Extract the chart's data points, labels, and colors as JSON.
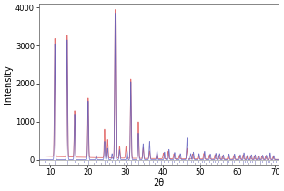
{
  "title": "",
  "xlabel": "2θ",
  "ylabel": "Intensity",
  "xlim": [
    7,
    71
  ],
  "ylim": [
    -120,
    4100
  ],
  "xticks": [
    10,
    20,
    30,
    40,
    50,
    60,
    70
  ],
  "yticks": [
    0,
    1000,
    2000,
    3000,
    4000
  ],
  "background": "#ffffff",
  "color_red": "#e06060",
  "color_blue": "#6060c0",
  "peaks_red": [
    [
      11.2,
      3100
    ],
    [
      14.5,
      3200
    ],
    [
      16.5,
      1220
    ],
    [
      20.1,
      1560
    ],
    [
      24.5,
      750
    ],
    [
      25.3,
      480
    ],
    [
      27.3,
      3900
    ],
    [
      28.5,
      320
    ],
    [
      30.2,
      300
    ],
    [
      31.5,
      2080
    ],
    [
      33.5,
      960
    ],
    [
      34.8,
      280
    ],
    [
      36.5,
      200
    ],
    [
      38.5,
      130
    ],
    [
      40.2,
      150
    ],
    [
      41.5,
      200
    ],
    [
      43.0,
      130
    ],
    [
      44.5,
      100
    ],
    [
      46.5,
      280
    ],
    [
      48.0,
      130
    ],
    [
      49.5,
      120
    ],
    [
      51.0,
      150
    ],
    [
      52.5,
      110
    ],
    [
      54.0,
      120
    ],
    [
      55.0,
      100
    ],
    [
      56.0,
      90
    ],
    [
      57.5,
      110
    ],
    [
      59.0,
      100
    ],
    [
      60.5,
      90
    ],
    [
      61.5,
      120
    ],
    [
      62.5,
      90
    ],
    [
      63.5,
      80
    ],
    [
      64.5,
      90
    ],
    [
      65.5,
      80
    ],
    [
      66.5,
      80
    ],
    [
      67.5,
      70
    ],
    [
      68.5,
      130
    ],
    [
      69.5,
      70
    ]
  ],
  "peaks_blue": [
    [
      11.2,
      3050
    ],
    [
      14.5,
      3150
    ],
    [
      16.5,
      1200
    ],
    [
      20.1,
      1540
    ],
    [
      22.3,
      110
    ],
    [
      24.5,
      480
    ],
    [
      25.3,
      300
    ],
    [
      26.5,
      160
    ],
    [
      27.3,
      3850
    ],
    [
      28.5,
      260
    ],
    [
      30.5,
      240
    ],
    [
      31.5,
      2050
    ],
    [
      33.5,
      700
    ],
    [
      34.8,
      420
    ],
    [
      36.5,
      480
    ],
    [
      38.5,
      240
    ],
    [
      40.5,
      200
    ],
    [
      41.7,
      270
    ],
    [
      43.2,
      190
    ],
    [
      44.7,
      160
    ],
    [
      46.5,
      570
    ],
    [
      47.5,
      160
    ],
    [
      48.2,
      200
    ],
    [
      49.7,
      160
    ],
    [
      51.2,
      220
    ],
    [
      52.7,
      150
    ],
    [
      54.2,
      170
    ],
    [
      55.2,
      160
    ],
    [
      56.2,
      130
    ],
    [
      57.7,
      150
    ],
    [
      59.2,
      150
    ],
    [
      60.7,
      130
    ],
    [
      61.7,
      180
    ],
    [
      62.7,
      130
    ],
    [
      63.7,
      130
    ],
    [
      64.7,
      130
    ],
    [
      65.7,
      120
    ],
    [
      66.7,
      120
    ],
    [
      67.7,
      120
    ],
    [
      68.7,
      180
    ],
    [
      69.7,
      110
    ]
  ],
  "tick_marks_row1": [
    8.5,
    11.2,
    14.5,
    16.5,
    19.0,
    20.1,
    22.3,
    24.5,
    25.3,
    26.5,
    27.3,
    28.5,
    30.2,
    31.5,
    32.5,
    33.5,
    34.8,
    36.5,
    37.5,
    38.5,
    39.5,
    40.2,
    41.5,
    42.5,
    43.0,
    44.5,
    45.5,
    46.5,
    47.5,
    48.0,
    49.5,
    50.5,
    51.0,
    52.0,
    52.5,
    53.5,
    54.0,
    55.0,
    56.0,
    57.0,
    57.5,
    58.5,
    59.0,
    60.0,
    60.5,
    61.5,
    62.0,
    62.5,
    63.5,
    64.0,
    64.5,
    65.5,
    66.0,
    66.5,
    67.5,
    68.0,
    68.5,
    69.5,
    70.2
  ],
  "tick_marks_row2": [
    9.8,
    11.2,
    14.5,
    17.5,
    20.1,
    21.5,
    23.5,
    24.5,
    25.8,
    27.3,
    29.5,
    30.5,
    31.5,
    33.5,
    35.0,
    36.5,
    38.0,
    39.5,
    41.0,
    42.5,
    44.0,
    46.5,
    48.5,
    50.0,
    51.5,
    53.0,
    54.5,
    55.5,
    57.0,
    58.5,
    60.0,
    61.5,
    63.0,
    64.5,
    66.0,
    67.5,
    69.0
  ],
  "background_level": 100,
  "sigma": 0.12
}
